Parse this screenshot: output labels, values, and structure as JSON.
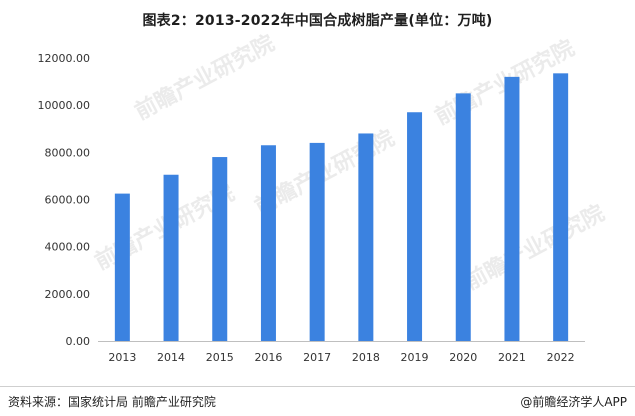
{
  "title": "图表2：2013-2022年中国合成树脂产量(单位：万吨)",
  "footer": {
    "source": "资料来源：国家统计局 前瞻产业研究院",
    "brand": "@前瞻经济学人APP"
  },
  "watermark": {
    "text": "前瞻产业研究院"
  },
  "colors": {
    "bar": "#3b82e0"
  },
  "chart_data": {
    "type": "bar",
    "title": "图表2：2013-2022年中国合成树脂产量(单位：万吨)",
    "xlabel": "",
    "ylabel": "",
    "categories": [
      "2013",
      "2014",
      "2015",
      "2016",
      "2017",
      "2018",
      "2019",
      "2020",
      "2021",
      "2022"
    ],
    "values": [
      6250,
      7050,
      7800,
      8300,
      8400,
      8800,
      9700,
      10500,
      11200,
      11350
    ],
    "ylim": [
      0,
      12000
    ],
    "yticks": [
      "0.00",
      "2000.00",
      "4000.00",
      "6000.00",
      "8000.00",
      "10000.00",
      "12000.00"
    ],
    "grid": false,
    "legend": "none"
  }
}
